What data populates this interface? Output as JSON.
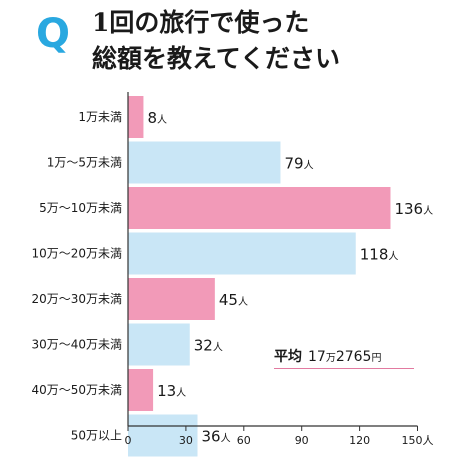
{
  "header": {
    "q_letter": "Q",
    "title_line1": "1回の旅行で使った",
    "title_line2": "総額を教えてください"
  },
  "average": {
    "label": "平均",
    "value_main": "17",
    "value_man": "万",
    "value_rest": "2765",
    "value_unit": "円"
  },
  "colors": {
    "pink": "#f29ab8",
    "light_blue": "#c9e6f6",
    "axis": "#333333",
    "accent_blue": "#29a8e0"
  },
  "chart_data": {
    "type": "bar",
    "orientation": "horizontal",
    "categories": [
      "1万未満",
      "1万～5万未満",
      "5万～10万未満",
      "10万～20万未満",
      "20万～30万未満",
      "30万～40万未満",
      "40万～50万未満",
      "50万以上"
    ],
    "values": [
      8,
      79,
      136,
      118,
      45,
      32,
      13,
      36
    ],
    "value_unit": "人",
    "bar_colors": [
      "pink",
      "light_blue",
      "pink",
      "light_blue",
      "pink",
      "light_blue",
      "pink",
      "light_blue"
    ],
    "xlim": [
      0,
      150
    ],
    "xticks": [
      "0",
      "30",
      "60",
      "90",
      "120",
      "150人"
    ],
    "grid": false
  }
}
